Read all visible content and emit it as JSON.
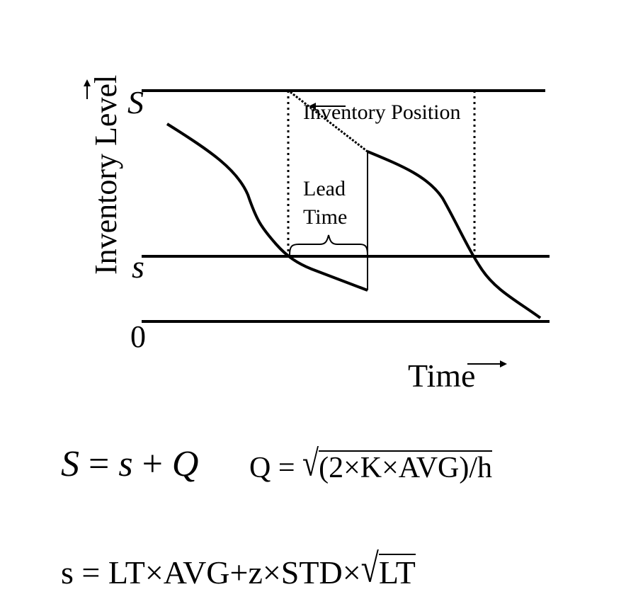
{
  "diagram": {
    "y_axis_label": "Inventory Level",
    "x_axis_label": "Time",
    "level_labels": {
      "upper": "S",
      "reorder": "s",
      "zero": "0"
    },
    "annotations": {
      "inventory_position": "Inventory Position",
      "lead_time_line1": "Lead",
      "lead_time_line2": "Time"
    }
  },
  "formulas": {
    "f1_lhs": "S",
    "f1_eq": "=",
    "f1_s": "s",
    "f1_plus": "+",
    "f1_q": "Q",
    "f2_lhs": "Q",
    "f2_eq": "=",
    "f2_radicand": "(2×K×AVG)/h",
    "f3_lhs": "s",
    "f3_eq": "=",
    "f3_body": "LT×AVG+z×STD×",
    "f3_radicand": "LT"
  }
}
